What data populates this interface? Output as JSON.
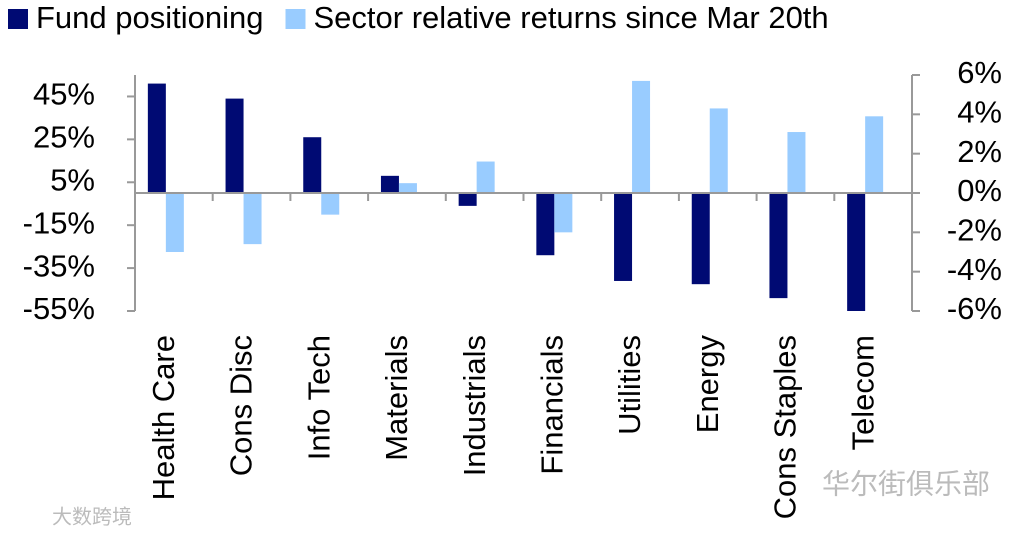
{
  "chart_data": {
    "type": "bar",
    "categories": [
      "Health Care",
      "Cons Disc",
      "Info Tech",
      "Materials",
      "Industrials",
      "Financials",
      "Utilities",
      "Energy",
      "Cons Staples",
      "Telecom"
    ],
    "series": [
      {
        "name": "Fund positioning",
        "color": "#000a73",
        "values": [
          51,
          44,
          26,
          8,
          -6,
          -29,
          -41,
          -42.5,
          -49,
          -55
        ]
      },
      {
        "name": "Sector relative returns since Mar 20th",
        "color": "#99ccff",
        "axis": "y2",
        "values": [
          -3.0,
          -2.6,
          -1.1,
          0.5,
          1.6,
          -2.0,
          5.7,
          4.3,
          3.1,
          3.9
        ]
      }
    ],
    "ylim": [
      -55,
      55
    ],
    "yticks": [
      {
        "value": 45,
        "label": "45%"
      },
      {
        "value": 25,
        "label": "25%"
      },
      {
        "value": 5,
        "label": "5%"
      },
      {
        "value": -15,
        "label": "-15%"
      },
      {
        "value": -35,
        "label": "-35%"
      },
      {
        "value": -55,
        "label": "-55%"
      }
    ],
    "y2lim": [
      -6,
      6
    ],
    "y2ticks": [
      {
        "value": 6,
        "label": "6%"
      },
      {
        "value": 4,
        "label": "4%"
      },
      {
        "value": 2,
        "label": "2%"
      },
      {
        "value": 0,
        "label": "0%"
      },
      {
        "value": -2,
        "label": "-2%"
      },
      {
        "value": -4,
        "label": "-4%"
      },
      {
        "value": -6,
        "label": "-6%"
      }
    ],
    "legend": "top",
    "watermarks": [
      "华尔街俱乐部",
      "大数跨境"
    ]
  }
}
